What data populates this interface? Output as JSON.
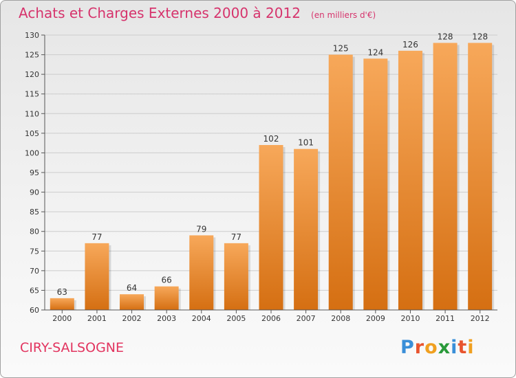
{
  "title": "Achats et Charges Externes 2000 à 2012",
  "unit_note": "(en milliers d'€)",
  "commune": "CIRY-SALSOGNE",
  "logo": {
    "text": "Proxiti",
    "letter_colors": [
      "#3a8fd8",
      "#e8542e",
      "#f0a020",
      "#2a9a3a",
      "#3a8fd8",
      "#e8542e",
      "#f0a020"
    ]
  },
  "colors": {
    "bar_top": "#f7a85a",
    "bar_bottom": "#d56f12",
    "title": "#d6336c",
    "grid": "#cccccc"
  },
  "chart_data": {
    "type": "bar",
    "categories": [
      "2000",
      "2001",
      "2002",
      "2003",
      "2004",
      "2005",
      "2006",
      "2007",
      "2008",
      "2009",
      "2010",
      "2011",
      "2012"
    ],
    "values": [
      63,
      77,
      64,
      66,
      79,
      77,
      102,
      101,
      125,
      124,
      126,
      128,
      128
    ],
    "ylim": [
      60,
      130
    ],
    "yticks": [
      60,
      65,
      70,
      75,
      80,
      85,
      90,
      95,
      100,
      105,
      110,
      115,
      120,
      125,
      130
    ],
    "grid": true,
    "legend": "none"
  }
}
